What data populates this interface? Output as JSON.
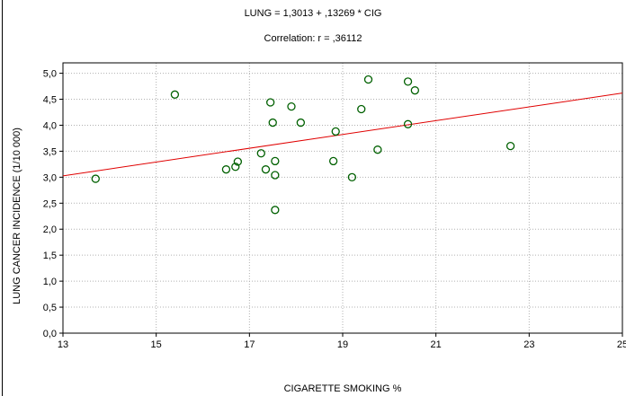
{
  "chart_data": {
    "type": "scatter",
    "title": "LUNG = 1,3013 + ,13269 * CIG",
    "subtitle": "Correlation: r = ,36112",
    "xlabel": "CIGARETTE SMOKING %",
    "ylabel": "LUNG CANCER INCIDENCE (1/10 000)",
    "xlim": [
      13,
      25
    ],
    "ylim": [
      0,
      5.2
    ],
    "x_ticks": [
      13,
      15,
      17,
      19,
      21,
      23,
      25
    ],
    "x_tick_labels": [
      "13",
      "15",
      "17",
      "19",
      "21",
      "23",
      "25"
    ],
    "y_ticks": [
      0,
      0.5,
      1.0,
      1.5,
      2.0,
      2.5,
      3.0,
      3.5,
      4.0,
      4.5,
      5.0
    ],
    "y_tick_labels": [
      "0,0",
      "0,5",
      "1,0",
      "1,5",
      "2,0",
      "2,5",
      "3,0",
      "3,5",
      "4,0",
      "4,5",
      "5,0"
    ],
    "grid": true,
    "regression": {
      "intercept": 1.3013,
      "slope": 0.13269,
      "color": "#e00000"
    },
    "marker_color": "#006000",
    "points": [
      {
        "x": 13.7,
        "y": 2.97
      },
      {
        "x": 15.4,
        "y": 4.59
      },
      {
        "x": 16.5,
        "y": 3.15
      },
      {
        "x": 16.7,
        "y": 3.2
      },
      {
        "x": 16.75,
        "y": 3.3
      },
      {
        "x": 17.25,
        "y": 3.46
      },
      {
        "x": 17.35,
        "y": 3.15
      },
      {
        "x": 17.45,
        "y": 4.44
      },
      {
        "x": 17.5,
        "y": 4.05
      },
      {
        "x": 17.55,
        "y": 3.31
      },
      {
        "x": 17.55,
        "y": 3.04
      },
      {
        "x": 17.55,
        "y": 2.37
      },
      {
        "x": 17.9,
        "y": 4.36
      },
      {
        "x": 18.1,
        "y": 4.05
      },
      {
        "x": 18.8,
        "y": 3.31
      },
      {
        "x": 18.85,
        "y": 3.88
      },
      {
        "x": 19.2,
        "y": 3.0
      },
      {
        "x": 19.4,
        "y": 4.31
      },
      {
        "x": 19.55,
        "y": 4.88
      },
      {
        "x": 19.75,
        "y": 3.53
      },
      {
        "x": 20.4,
        "y": 4.84
      },
      {
        "x": 20.4,
        "y": 4.02
      },
      {
        "x": 20.55,
        "y": 4.67
      },
      {
        "x": 22.6,
        "y": 3.6
      }
    ]
  }
}
